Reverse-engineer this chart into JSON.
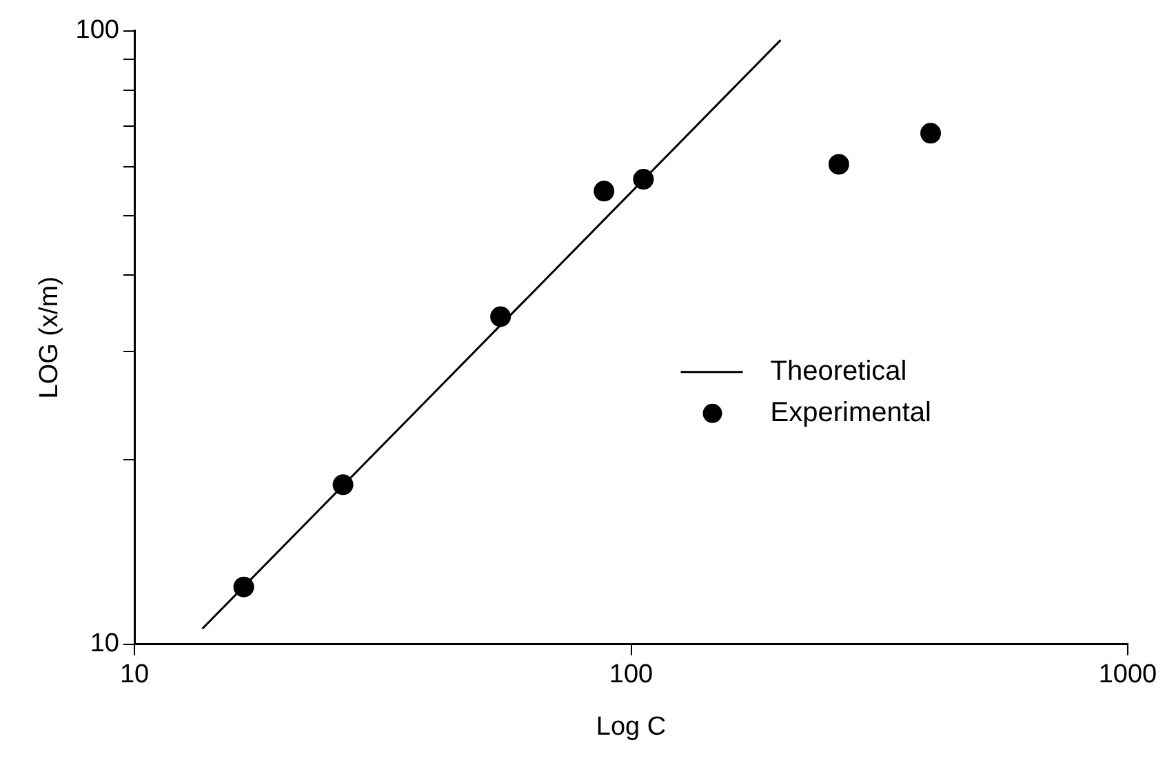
{
  "chart_data": {
    "type": "scatter",
    "xlabel": "Log C",
    "ylabel": "LOG (x/m)",
    "log": "xy",
    "xlim": [
      10,
      1000
    ],
    "xticks": [
      10,
      100,
      1000
    ],
    "ylim": [
      10,
      100
    ],
    "yticks": [
      10,
      {
        "value": 20,
        "label": null
      },
      {
        "value": 30,
        "label": null
      },
      {
        "value": 40,
        "label": null
      },
      {
        "value": 50,
        "label": null
      },
      {
        "value": 60,
        "label": null
      },
      {
        "value": 70,
        "label": null
      },
      {
        "value": 80,
        "label": null
      },
      {
        "value": 90,
        "label": null
      },
      100
    ],
    "legend": "right",
    "series": [
      {
        "name": "Theoretical",
        "type": "line",
        "color": "#000000",
        "marker": "none",
        "line_style": "solid",
        "x": [
          13.7,
          200
        ],
        "values": [
          10.6,
          96.6
        ]
      },
      {
        "name": "Experimental",
        "type": "scatter",
        "color": "#000000",
        "marker": "circle",
        "x": [
          16.6,
          26.3,
          54.6,
          88.2,
          105.9,
          262,
          401
        ],
        "values": [
          12.4,
          18.2,
          34.2,
          54.8,
          57.3,
          60.6,
          68.1
        ]
      }
    ]
  }
}
